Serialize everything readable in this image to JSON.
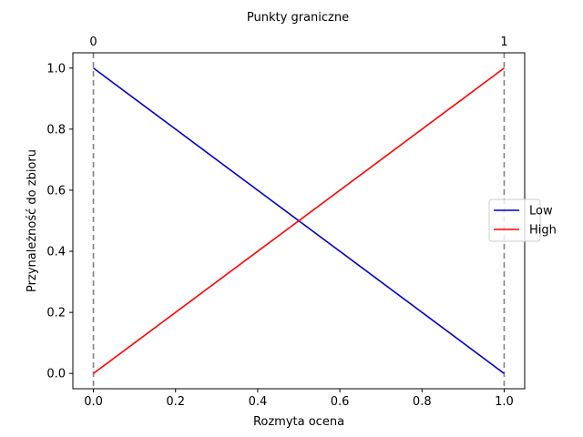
{
  "chart_data": {
    "type": "line",
    "title": "Punkty graniczne",
    "xlabel": "Rozmyta ocena",
    "ylabel": "Przynależność do zbioru",
    "xlim": [
      -0.05,
      1.05
    ],
    "ylim": [
      -0.05,
      1.05
    ],
    "x_ticks": [
      "0.0",
      "0.2",
      "0.4",
      "0.6",
      "0.8",
      "1.0"
    ],
    "y_ticks": [
      "0.0",
      "0.2",
      "0.4",
      "0.6",
      "0.8",
      "1.0"
    ],
    "grid": false,
    "legend_position": "center-right",
    "boundary_lines": [
      {
        "x": 0.0,
        "label": "0",
        "color": "#808080"
      },
      {
        "x": 1.0,
        "label": "1",
        "color": "#808080"
      }
    ],
    "series": [
      {
        "name": "Low",
        "color": "#0000cc",
        "x": [
          0.0,
          1.0
        ],
        "y": [
          1.0,
          0.0
        ]
      },
      {
        "name": "High",
        "color": "#ff0000",
        "x": [
          0.0,
          1.0
        ],
        "y": [
          0.0,
          1.0
        ]
      }
    ]
  }
}
